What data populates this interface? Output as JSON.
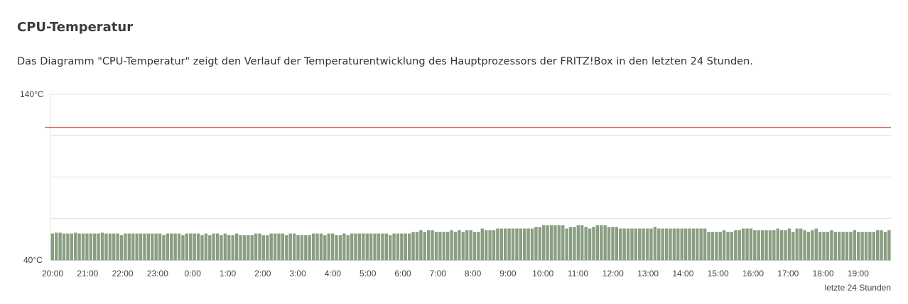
{
  "page": {
    "title": "CPU-Temperatur",
    "description": "Das Diagramm \"CPU-Temperatur\" zeigt den Verlauf der Temperaturentwicklung des Hauptprozessors der FRITZ!Box in den letzten 24 Stunden."
  },
  "chart_data": {
    "type": "bar",
    "title": "",
    "xlabel": "letzte 24 Stunden",
    "ylabel": "",
    "ylim": [
      40,
      140
    ],
    "y_tick_labels": [
      "140°C",
      "40°C"
    ],
    "x_tick_labels": [
      "20:00",
      "21:00",
      "22:00",
      "23:00",
      "0:00",
      "1:00",
      "2:00",
      "3:00",
      "4:00",
      "5:00",
      "6:00",
      "7:00",
      "8:00",
      "9:00",
      "10:00",
      "11:00",
      "12:00",
      "13:00",
      "14:00",
      "15:00",
      "16:00",
      "17:00",
      "18:00",
      "19:00"
    ],
    "threshold": 120,
    "grid": true,
    "colors": {
      "bars": "#8a9e82",
      "threshold": "#cc2222",
      "grid": "#e4e4e4"
    },
    "values": [
      56,
      56.5,
      56.5,
      56,
      56,
      56,
      56.5,
      56,
      56,
      56,
      56,
      56,
      56,
      56.5,
      56,
      56,
      56,
      56,
      55,
      56,
      56,
      56,
      56,
      56,
      56,
      56,
      56,
      56,
      56,
      55,
      56,
      56,
      56,
      56,
      55,
      56,
      56,
      56,
      56,
      55,
      56,
      55,
      56,
      56,
      55,
      56,
      55,
      55,
      56,
      55,
      55,
      55,
      55,
      56,
      56,
      55,
      55,
      56,
      56,
      56,
      56,
      55,
      56,
      56,
      55,
      55,
      55,
      55,
      56,
      56,
      56,
      55,
      56,
      56,
      55,
      55,
      56,
      55,
      56,
      56,
      56,
      56,
      56,
      56,
      56,
      56,
      56,
      56,
      55,
      56,
      56,
      56,
      56,
      56,
      57,
      57,
      58,
      57,
      58,
      58,
      57,
      57,
      57,
      57,
      58,
      57,
      58,
      57,
      58,
      58,
      57,
      57,
      59,
      58,
      58,
      58,
      59,
      59,
      59,
      59,
      59,
      59,
      59,
      59,
      59,
      59,
      60,
      60,
      61,
      61,
      61,
      61,
      61,
      61,
      59,
      60,
      60,
      61,
      61,
      60,
      59,
      60,
      61,
      61,
      61,
      60,
      60,
      60,
      59,
      59,
      59,
      59,
      59,
      59,
      59,
      59,
      59,
      60,
      59,
      59,
      59,
      59,
      59,
      59,
      59,
      59,
      59,
      59,
      59,
      59,
      59,
      57,
      57,
      57,
      57,
      58,
      57,
      57,
      58,
      58,
      59,
      59,
      59,
      58,
      58,
      58,
      58,
      58,
      58,
      59,
      58,
      58,
      59,
      57,
      59,
      59,
      58,
      57,
      58,
      59,
      57,
      57,
      57,
      58,
      57,
      57,
      57,
      57,
      57,
      58,
      57,
      57,
      57,
      57,
      57,
      58,
      58,
      57,
      58
    ]
  }
}
